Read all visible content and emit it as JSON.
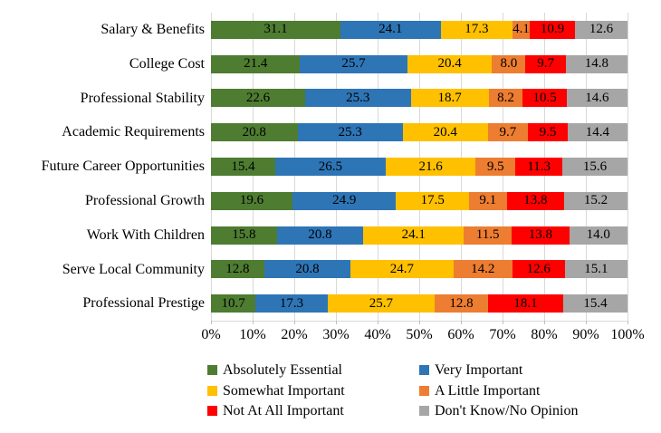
{
  "chart_data": {
    "type": "bar",
    "orientation": "horizontal",
    "stacked": true,
    "title": "",
    "xlabel": "",
    "ylabel": "",
    "xlim": [
      0,
      100
    ],
    "grid": "vertical",
    "gridline_color": "#D9D9D9",
    "x_ticks": [
      "0%",
      "10%",
      "20%",
      "30%",
      "40%",
      "50%",
      "60%",
      "70%",
      "80%",
      "90%",
      "100%"
    ],
    "categories": [
      "Salary & Benefits",
      "College Cost",
      "Professional Stability",
      "Academic Requirements",
      "Future Career Opportunities",
      "Professional Growth",
      "Work With Children",
      "Serve Local Community",
      "Professional Prestige"
    ],
    "series": [
      {
        "name": "Absolutely Essential",
        "color": "#4E7C31",
        "values": [
          31.1,
          21.4,
          22.6,
          20.8,
          15.4,
          19.6,
          15.8,
          12.8,
          10.7
        ]
      },
      {
        "name": "Very Important",
        "color": "#2E75B6",
        "values": [
          24.1,
          25.7,
          25.3,
          25.3,
          26.5,
          24.9,
          20.8,
          20.8,
          17.3
        ]
      },
      {
        "name": "Somewhat Important",
        "color": "#FFC000",
        "values": [
          17.3,
          20.4,
          18.7,
          20.4,
          21.6,
          17.5,
          24.1,
          24.7,
          25.7
        ]
      },
      {
        "name": "A Little Important",
        "color": "#ED7D31",
        "values": [
          4.1,
          8.0,
          8.2,
          9.7,
          9.5,
          9.1,
          11.5,
          14.2,
          12.8
        ]
      },
      {
        "name": "Not At All Important",
        "color": "#FF0000",
        "values": [
          10.9,
          9.7,
          10.5,
          9.5,
          11.3,
          13.8,
          13.8,
          12.6,
          18.1
        ]
      },
      {
        "name": "Don't Know/No Opinion",
        "color": "#A6A6A6",
        "values": [
          12.6,
          14.8,
          14.6,
          14.4,
          15.6,
          15.2,
          14.0,
          15.1,
          15.4
        ]
      }
    ],
    "data_label_decimals": 1,
    "legend_position": "bottom",
    "legend_columns": 2
  }
}
